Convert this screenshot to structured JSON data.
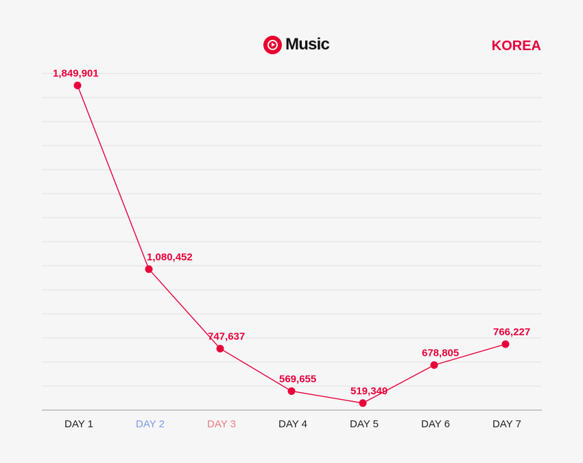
{
  "header": {
    "logo_text": "Music",
    "logo_icon": "youtube-music-icon",
    "region": "KOREA"
  },
  "colors": {
    "accent": "#e8003a",
    "grid": "#e0e0e0",
    "axis": "#9a9a9a",
    "label_default": "#222222",
    "label_day2": "#7a9ee6",
    "label_day3": "#f07a82"
  },
  "chart_data": {
    "type": "line",
    "title": "",
    "xlabel": "",
    "ylabel": "",
    "categories": [
      "DAY 1",
      "DAY 2",
      "DAY 3",
      "DAY 4",
      "DAY 5",
      "DAY 6",
      "DAY 7"
    ],
    "category_colors": [
      "#222222",
      "#7a9ee6",
      "#f07a82",
      "#222222",
      "#222222",
      "#222222",
      "#222222"
    ],
    "values": [
      1849901,
      1080452,
      747637,
      569655,
      519349,
      678805,
      766227
    ],
    "value_labels": [
      "1,849,901",
      "1,080,452",
      "747,637",
      "569,655",
      "519,349",
      "678,805",
      "766,227"
    ],
    "series_color": "#e8003a",
    "ylim": [
      490000,
      1900000
    ],
    "grid": true,
    "gridlines": 14,
    "legend": "none"
  }
}
